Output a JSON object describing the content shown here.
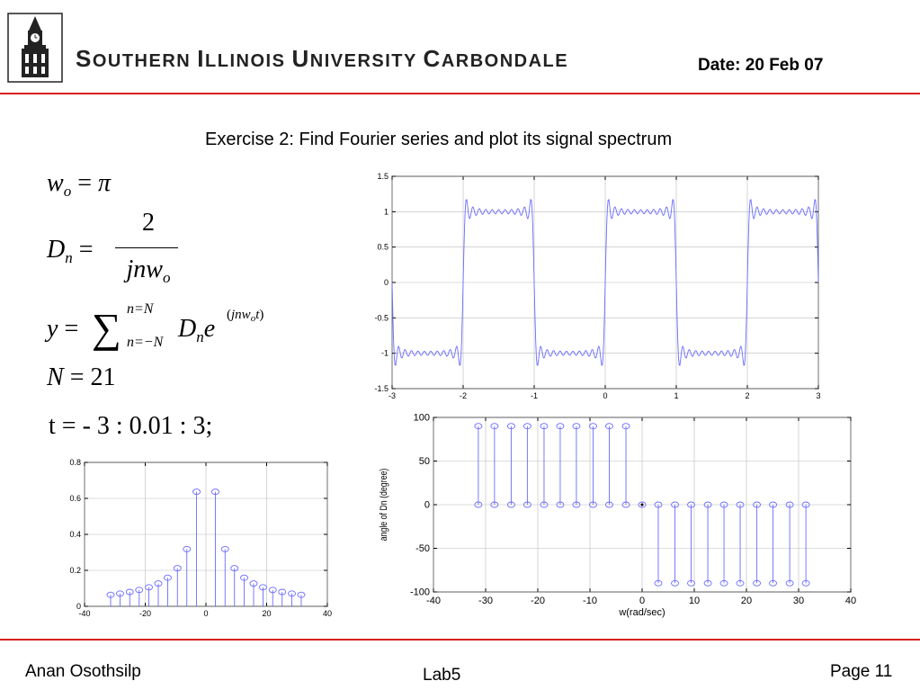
{
  "header": {
    "university_words": [
      "Southern",
      "Illinois",
      "University",
      "Carbondale"
    ],
    "date": "Date: 20 Feb 07"
  },
  "title": "Exercise 2: Find Fourier series and plot its signal spectrum",
  "equations": {
    "eq1": "w_o = π",
    "eq2_num": "2",
    "eq2_den": "jnw_o",
    "eq3_sum_top": "n=N",
    "eq3_sum_bottom": "n=−N",
    "eq5": "t = - 3 : 0.01 : 3;",
    "N_value": "21"
  },
  "footer": {
    "author": "Anan Osothsilp",
    "lab": "Lab5",
    "page": "Page 11"
  },
  "chart_data": [
    {
      "type": "line",
      "name_ref": "square-wave",
      "xlim": [
        -3,
        3
      ],
      "ylim": [
        -1.5,
        1.5
      ],
      "xticks": [
        -3,
        -2,
        -1,
        0,
        1,
        2,
        3
      ],
      "yticks": [
        -1.5,
        -1,
        -0.5,
        0,
        0.5,
        1,
        1.5
      ],
      "grid": true,
      "series": [
        {
          "harmonics": 21,
          "w0": 3.14159,
          "color": "#6b6bff"
        }
      ]
    },
    {
      "type": "stem",
      "name_ref": "magnitude",
      "xlim": [
        -40,
        40
      ],
      "ylim": [
        0,
        0.8
      ],
      "xticks": [
        -40,
        -20,
        0,
        20,
        40
      ],
      "yticks": [
        0,
        0.2,
        0.4,
        0.6,
        0.8
      ],
      "grid": true,
      "x": [
        -31.4,
        -28.3,
        -25.1,
        -22.0,
        -18.8,
        -15.7,
        -12.6,
        -9.4,
        -6.3,
        -3.1,
        3.1,
        6.3,
        9.4,
        12.6,
        15.7,
        18.8,
        22.0,
        25.1,
        28.3,
        31.4
      ],
      "y": [
        0.064,
        0.071,
        0.08,
        0.091,
        0.106,
        0.127,
        0.159,
        0.212,
        0.318,
        0.637,
        0.637,
        0.318,
        0.212,
        0.159,
        0.127,
        0.106,
        0.091,
        0.08,
        0.071,
        0.064
      ]
    },
    {
      "type": "stem",
      "name_ref": "phase",
      "xlim": [
        -40,
        40
      ],
      "ylim": [
        -100,
        100
      ],
      "xticks": [
        -40,
        -30,
        -20,
        -10,
        0,
        10,
        20,
        30,
        40
      ],
      "yticks": [
        -100,
        -50,
        0,
        50,
        100
      ],
      "xlabel": "w(rad/sec)",
      "ylabel": "angle of Dn (degree)",
      "grid": true,
      "x": [
        -31.4,
        -28.3,
        -25.1,
        -22.0,
        -18.8,
        -15.7,
        -12.6,
        -9.4,
        -6.3,
        -3.1,
        3.1,
        6.3,
        9.4,
        12.6,
        15.7,
        18.8,
        22.0,
        25.1,
        28.3,
        31.4
      ],
      "y": [
        90,
        90,
        90,
        90,
        90,
        90,
        90,
        90,
        90,
        90,
        -90,
        -90,
        -90,
        -90,
        -90,
        -90,
        -90,
        -90,
        -90,
        -90
      ]
    }
  ]
}
